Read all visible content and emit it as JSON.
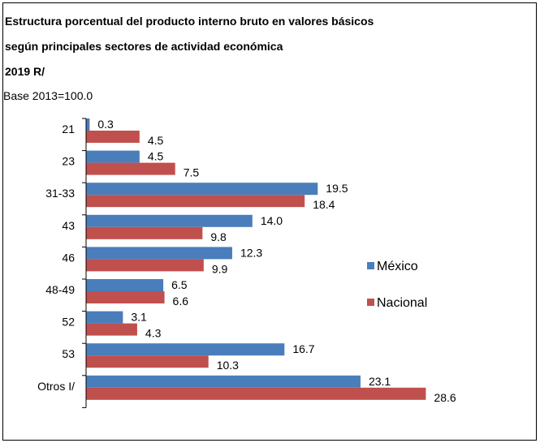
{
  "chart_data": {
    "type": "bar",
    "orientation": "horizontal",
    "title_lines": [
      "Estructura porcentual del producto interno bruto en valores básicos",
      "según principales sectores de actividad económica",
      "2019 R/"
    ],
    "subtitle": "Base 2013=100.0",
    "categories": [
      "21",
      "23",
      "31-33",
      "43",
      "46",
      "48-49",
      "52",
      "53",
      "Otros I/"
    ],
    "series": [
      {
        "name": "México",
        "color": "#4a7ebb",
        "values": [
          0.3,
          4.5,
          19.5,
          14.0,
          12.3,
          6.5,
          3.1,
          16.7,
          23.1
        ]
      },
      {
        "name": "Nacional",
        "color": "#c0504d",
        "values": [
          4.5,
          7.5,
          18.4,
          9.8,
          9.9,
          6.6,
          4.3,
          10.3,
          28.6
        ]
      }
    ],
    "value_labels": true,
    "grid": false,
    "legend_position": "right"
  }
}
